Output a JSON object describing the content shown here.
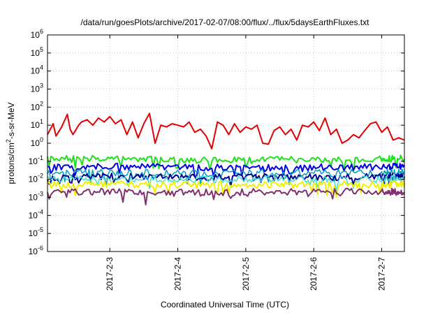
{
  "chart_data": {
    "type": "line",
    "title": "/data/run/goesPlots/archive/2017-02-07/08:00/flux/../flux/5daysEarthFluxes.txt",
    "xlabel": "Coordinated Universal Time (UTC)",
    "ylabel": {
      "prefix": "protons/cm",
      "sup": "2",
      "suffix": "-s-sr-MeV"
    },
    "yscale": "log",
    "ylim": [
      1e-06,
      1000000.0
    ],
    "y_ticks": [
      {
        "base": "10",
        "exp": "6",
        "value": 1000000.0
      },
      {
        "base": "10",
        "exp": "5",
        "value": 100000.0
      },
      {
        "base": "10",
        "exp": "4",
        "value": 10000.0
      },
      {
        "base": "10",
        "exp": "3",
        "value": 1000.0
      },
      {
        "base": "10",
        "exp": "2",
        "value": 100.0
      },
      {
        "base": "10",
        "exp": "1",
        "value": 10.0
      },
      {
        "base": "10",
        "exp": "0",
        "value": 1.0
      },
      {
        "base": "10",
        "exp": "-1",
        "value": 0.1
      },
      {
        "base": "10",
        "exp": "-2",
        "value": 0.01
      },
      {
        "base": "10",
        "exp": "-3",
        "value": 0.001
      },
      {
        "base": "10",
        "exp": "-4",
        "value": 0.0001
      },
      {
        "base": "10",
        "exp": "-5",
        "value": 1e-05
      },
      {
        "base": "10",
        "exp": "-6",
        "value": 1e-06
      }
    ],
    "xlim": [
      "2017-02-02T02:00",
      "2017-02-07T08:00"
    ],
    "x_ticks": [
      "2017-2-3",
      "2017-2-4",
      "2017-2-5",
      "2017-2-6",
      "2017-2-7"
    ],
    "grid": true,
    "series": [
      {
        "color": "#e00000",
        "width": 2,
        "x": [
          "2017-02-02T02:00",
          "2017-02-02T04:00",
          "2017-02-02T05:00",
          "2017-02-02T07:00",
          "2017-02-02T09:00",
          "2017-02-02T10:00",
          "2017-02-02T11:00",
          "2017-02-02T13:00",
          "2017-02-02T14:00",
          "2017-02-02T16:00",
          "2017-02-02T18:00",
          "2017-02-02T20:00",
          "2017-02-02T22:00",
          "2017-02-03T00:00",
          "2017-02-03T02:00",
          "2017-02-03T04:00",
          "2017-02-03T06:00",
          "2017-02-03T08:00",
          "2017-02-03T10:00",
          "2017-02-03T12:00",
          "2017-02-03T14:00",
          "2017-02-03T16:00",
          "2017-02-03T18:00",
          "2017-02-03T20:00",
          "2017-02-03T22:00",
          "2017-02-04T00:00",
          "2017-02-04T02:00",
          "2017-02-04T04:00",
          "2017-02-04T06:00",
          "2017-02-04T08:00",
          "2017-02-04T10:00",
          "2017-02-04T12:00",
          "2017-02-04T14:00",
          "2017-02-04T16:00",
          "2017-02-04T18:00",
          "2017-02-04T20:00",
          "2017-02-04T22:00",
          "2017-02-05T00:00",
          "2017-02-05T02:00",
          "2017-02-05T04:00",
          "2017-02-05T06:00",
          "2017-02-05T08:00",
          "2017-02-05T10:00",
          "2017-02-05T12:00",
          "2017-02-05T14:00",
          "2017-02-05T16:00",
          "2017-02-05T18:00",
          "2017-02-05T20:00",
          "2017-02-05T22:00",
          "2017-02-06T00:00",
          "2017-02-06T02:00",
          "2017-02-06T04:00",
          "2017-02-06T06:00",
          "2017-02-06T08:00",
          "2017-02-06T10:00",
          "2017-02-06T12:00",
          "2017-02-06T14:00",
          "2017-02-06T16:00",
          "2017-02-06T18:00",
          "2017-02-06T20:00",
          "2017-02-06T22:00",
          "2017-02-07T00:00",
          "2017-02-07T02:00",
          "2017-02-07T04:00",
          "2017-02-07T06:00",
          "2017-02-07T08:00"
        ],
        "values": [
          3,
          12,
          2.5,
          8,
          40,
          6,
          3,
          10,
          15,
          20,
          10,
          25,
          15,
          30,
          12,
          20,
          3,
          15,
          2,
          12,
          45,
          1,
          10,
          8,
          12,
          10,
          8,
          15,
          4,
          6,
          2.5,
          0.5,
          15,
          10,
          3,
          12,
          4,
          8,
          6,
          10,
          1,
          0.9,
          5,
          8,
          3,
          6,
          1.5,
          10,
          8,
          15,
          5,
          25,
          3,
          6,
          1,
          1.5,
          3,
          2,
          5,
          12,
          15,
          4,
          8,
          1.5,
          2,
          1.5
        ]
      },
      {
        "color": "#20e020",
        "width": 2,
        "x": [
          "2017-02-02T02:00",
          "2017-02-03T00:00",
          "2017-02-04T00:00",
          "2017-02-05T00:00",
          "2017-02-06T00:00",
          "2017-02-07T00:00",
          "2017-02-07T08:00"
        ],
        "values": [
          0.13,
          0.14,
          0.12,
          0.12,
          0.12,
          0.13,
          0.14
        ]
      },
      {
        "color": "#0000e0",
        "width": 2,
        "x": [
          "2017-02-02T02:00",
          "2017-02-03T00:00",
          "2017-02-04T00:00",
          "2017-02-05T00:00",
          "2017-02-06T00:00",
          "2017-02-07T00:00",
          "2017-02-07T08:00"
        ],
        "values": [
          0.045,
          0.05,
          0.045,
          0.045,
          0.045,
          0.05,
          0.05
        ]
      },
      {
        "color": "#00a0c0",
        "width": 1.5,
        "x": [
          "2017-02-02T02:00",
          "2017-02-03T00:00",
          "2017-02-04T00:00",
          "2017-02-05T00:00",
          "2017-02-06T00:00",
          "2017-02-07T00:00",
          "2017-02-07T08:00"
        ],
        "values": [
          0.022,
          0.024,
          0.022,
          0.022,
          0.022,
          0.024,
          0.024
        ]
      },
      {
        "color": "#000090",
        "width": 2,
        "x": [
          "2017-02-02T02:00",
          "2017-02-03T00:00",
          "2017-02-04T00:00",
          "2017-02-05T00:00",
          "2017-02-06T00:00",
          "2017-02-07T00:00",
          "2017-02-07T08:00"
        ],
        "values": [
          0.013,
          0.014,
          0.013,
          0.013,
          0.013,
          0.014,
          0.014
        ]
      },
      {
        "color": "#40e0d0",
        "width": 1.5,
        "x": [
          "2017-02-02T02:00",
          "2017-02-03T00:00",
          "2017-02-04T00:00",
          "2017-02-05T00:00",
          "2017-02-06T00:00",
          "2017-02-07T00:00",
          "2017-02-07T08:00"
        ],
        "values": [
          0.01,
          0.011,
          0.01,
          0.01,
          0.01,
          0.011,
          0.011
        ]
      },
      {
        "color": "#f0f000",
        "width": 2,
        "x": [
          "2017-02-02T02:00",
          "2017-02-03T00:00",
          "2017-02-04T00:00",
          "2017-02-05T00:00",
          "2017-02-06T00:00",
          "2017-02-07T00:00",
          "2017-02-07T08:00"
        ],
        "values": [
          0.005,
          0.0052,
          0.005,
          0.005,
          0.005,
          0.0052,
          0.005
        ]
      },
      {
        "color": "#803070",
        "width": 2,
        "x": [
          "2017-02-02T02:00",
          "2017-02-03T00:00",
          "2017-02-04T00:00",
          "2017-02-05T00:00",
          "2017-02-06T00:00",
          "2017-02-07T00:00",
          "2017-02-07T08:00"
        ],
        "values": [
          0.002,
          0.002,
          0.0018,
          0.002,
          0.002,
          0.002,
          0.002
        ]
      }
    ]
  }
}
